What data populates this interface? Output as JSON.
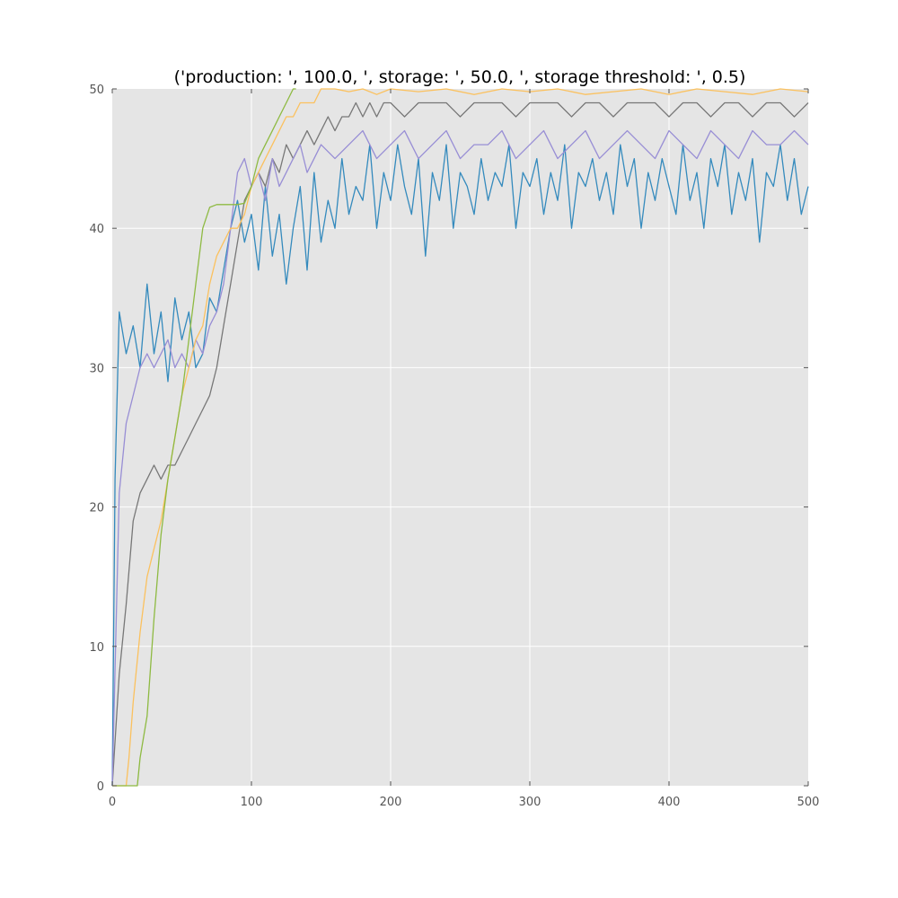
{
  "chart_data": {
    "type": "line",
    "title": "('production: ', 100.0, ', storage: ', 50.0, ', storage threshold: ', 0.5)",
    "xlabel": "",
    "ylabel": "",
    "xlim": [
      0,
      500
    ],
    "ylim": [
      0,
      50
    ],
    "x_ticks": [
      0,
      100,
      200,
      300,
      400,
      500
    ],
    "y_ticks": [
      0,
      10,
      20,
      30,
      40,
      50
    ],
    "grid": true,
    "legend": "none",
    "colors": {
      "background": "#e5e5e5",
      "grid": "#ffffff",
      "title": "#000000",
      "tick_label": "#555555"
    },
    "series": [
      {
        "color": "#348abd",
        "x": [
          0,
          2,
          5,
          10,
          15,
          20,
          25,
          30,
          35,
          40,
          45,
          50,
          55,
          60,
          65,
          70,
          75,
          80,
          85,
          90,
          95,
          100,
          105,
          110,
          115,
          120,
          125,
          130,
          135,
          140,
          145,
          150,
          155,
          160,
          165,
          170,
          175,
          180,
          185,
          190,
          195,
          200,
          205,
          210,
          215,
          220,
          225,
          230,
          235,
          240,
          245,
          250,
          255,
          260,
          265,
          270,
          275,
          280,
          285,
          290,
          295,
          300,
          305,
          310,
          315,
          320,
          325,
          330,
          335,
          340,
          345,
          350,
          355,
          360,
          365,
          370,
          375,
          380,
          385,
          390,
          395,
          400,
          405,
          410,
          415,
          420,
          425,
          430,
          435,
          440,
          445,
          450,
          455,
          460,
          465,
          470,
          475,
          480,
          485,
          490,
          495,
          500
        ],
        "values": [
          0,
          22,
          34,
          31,
          33,
          30,
          36,
          31,
          34,
          29,
          35,
          32,
          34,
          30,
          31,
          35,
          34,
          37,
          40,
          42,
          39,
          41,
          37,
          43,
          38,
          41,
          36,
          40,
          43,
          37,
          44,
          39,
          42,
          40,
          45,
          41,
          43,
          42,
          46,
          40,
          44,
          42,
          46,
          43,
          41,
          45,
          38,
          44,
          42,
          46,
          40,
          44,
          43,
          41,
          45,
          42,
          44,
          43,
          46,
          40,
          44,
          43,
          45,
          41,
          44,
          42,
          46,
          40,
          44,
          43,
          45,
          42,
          44,
          41,
          46,
          43,
          45,
          40,
          44,
          42,
          45,
          43,
          41,
          46,
          42,
          44,
          40,
          45,
          43,
          46,
          41,
          44,
          42,
          45,
          39,
          44,
          43,
          46,
          42,
          45,
          41,
          43
        ]
      },
      {
        "color": "#777777",
        "x": [
          0,
          5,
          10,
          15,
          20,
          25,
          30,
          35,
          40,
          45,
          50,
          55,
          60,
          65,
          70,
          75,
          80,
          85,
          90,
          95,
          100,
          105,
          110,
          115,
          120,
          125,
          130,
          135,
          140,
          145,
          150,
          155,
          160,
          165,
          170,
          175,
          180,
          185,
          190,
          195,
          200,
          210,
          220,
          230,
          240,
          250,
          260,
          270,
          280,
          290,
          300,
          310,
          320,
          330,
          340,
          350,
          360,
          370,
          380,
          390,
          400,
          410,
          420,
          430,
          440,
          450,
          460,
          470,
          480,
          490,
          500
        ],
        "values": [
          0,
          8,
          13,
          19,
          21,
          22,
          23,
          22,
          23,
          23,
          24,
          25,
          26,
          27,
          28,
          30,
          33,
          36,
          39,
          42,
          43,
          44,
          43,
          45,
          44,
          46,
          45,
          46,
          47,
          46,
          47,
          48,
          47,
          48,
          48,
          49,
          48,
          49,
          48,
          49,
          49,
          48,
          49,
          49,
          49,
          48,
          49,
          49,
          49,
          48,
          49,
          49,
          49,
          48,
          49,
          49,
          48,
          49,
          49,
          49,
          48,
          49,
          49,
          48,
          49,
          49,
          48,
          49,
          49,
          48,
          49
        ]
      },
      {
        "color": "#988ed5",
        "x": [
          0,
          5,
          10,
          15,
          20,
          25,
          30,
          35,
          40,
          45,
          50,
          55,
          60,
          65,
          70,
          75,
          80,
          85,
          90,
          95,
          100,
          105,
          110,
          115,
          120,
          125,
          130,
          135,
          140,
          145,
          150,
          160,
          170,
          180,
          190,
          200,
          210,
          220,
          230,
          240,
          250,
          260,
          270,
          280,
          290,
          300,
          310,
          320,
          330,
          340,
          350,
          360,
          370,
          380,
          390,
          400,
          410,
          420,
          430,
          440,
          450,
          460,
          470,
          480,
          490,
          500
        ],
        "values": [
          0,
          21,
          26,
          28,
          30,
          31,
          30,
          31,
          32,
          30,
          31,
          30,
          32,
          31,
          33,
          34,
          36,
          40,
          44,
          45,
          43,
          44,
          42,
          45,
          43,
          44,
          45,
          46,
          44,
          45,
          46,
          45,
          46,
          47,
          45,
          46,
          47,
          45,
          46,
          47,
          45,
          46,
          46,
          47,
          45,
          46,
          47,
          45,
          46,
          47,
          45,
          46,
          47,
          46,
          45,
          47,
          46,
          45,
          47,
          46,
          45,
          47,
          46,
          46,
          47,
          46
        ]
      },
      {
        "color": "#fbc15e",
        "x": [
          0,
          10,
          12,
          15,
          20,
          25,
          30,
          35,
          40,
          45,
          50,
          55,
          60,
          65,
          70,
          75,
          80,
          85,
          90,
          95,
          100,
          105,
          110,
          115,
          120,
          125,
          130,
          135,
          140,
          145,
          150,
          160,
          170,
          180,
          190,
          200,
          220,
          240,
          260,
          280,
          300,
          320,
          340,
          360,
          380,
          400,
          420,
          440,
          460,
          480,
          500
        ],
        "values": [
          0,
          0,
          2,
          6,
          11,
          15,
          17,
          19,
          22,
          25,
          28,
          30,
          32,
          33,
          36,
          38,
          39,
          40,
          40,
          41,
          43,
          44,
          45,
          46,
          47,
          48,
          48,
          49,
          49,
          49,
          50,
          50,
          49.8,
          50,
          49.6,
          50,
          49.8,
          50,
          49.6,
          50,
          49.8,
          50,
          49.6,
          49.8,
          50,
          49.6,
          50,
          49.8,
          49.6,
          50,
          49.8
        ]
      },
      {
        "color": "#8eba42",
        "x": [
          0,
          18,
          20,
          25,
          30,
          35,
          40,
          45,
          50,
          55,
          60,
          65,
          70,
          75,
          80,
          85,
          90,
          95,
          100,
          105,
          110,
          115,
          120,
          125,
          130,
          132
        ],
        "values": [
          0,
          0,
          2,
          5,
          12,
          18,
          22,
          25,
          28,
          32,
          36,
          40,
          41.5,
          41.7,
          41.7,
          41.7,
          41.7,
          41.8,
          43,
          45,
          46,
          47,
          48,
          49,
          50,
          50
        ]
      }
    ]
  }
}
